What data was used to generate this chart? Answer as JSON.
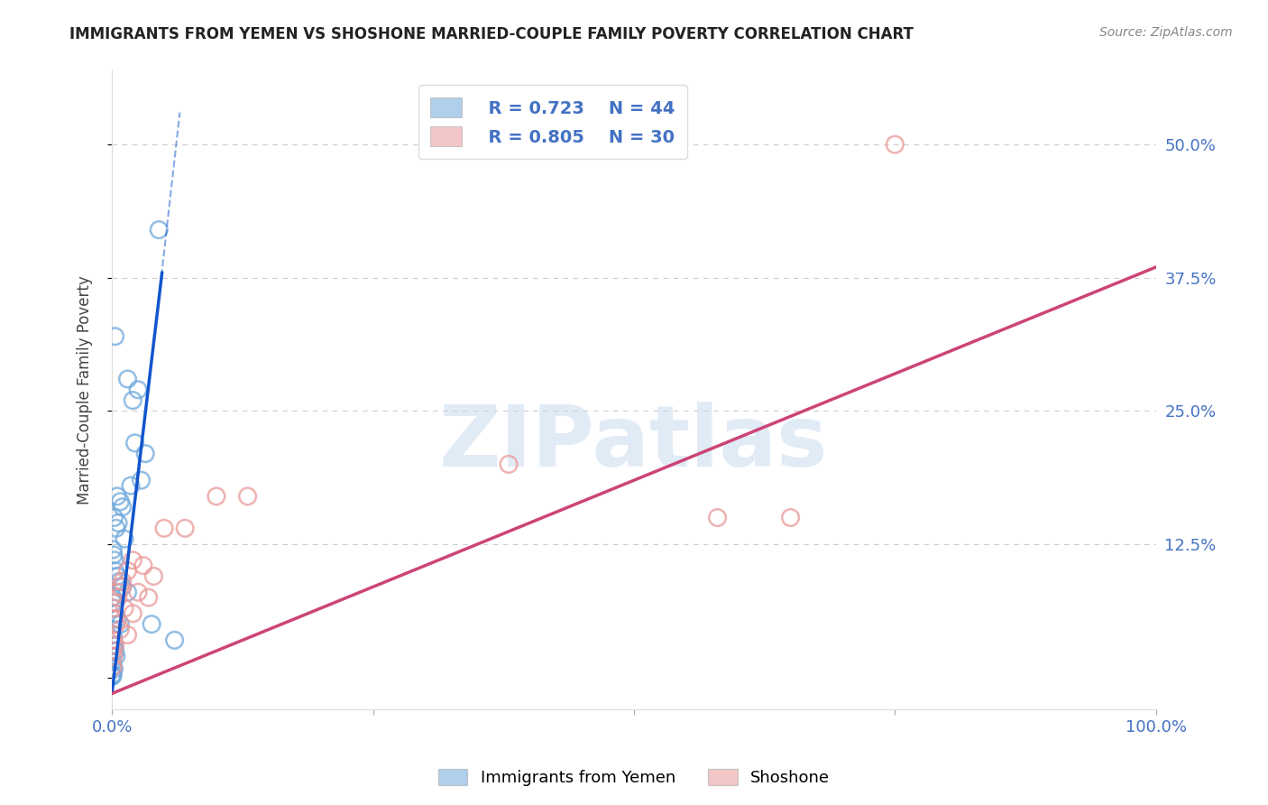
{
  "title": "IMMIGRANTS FROM YEMEN VS SHOSHONE MARRIED-COUPLE FAMILY POVERTY CORRELATION CHART",
  "source": "Source: ZipAtlas.com",
  "ylabel": "Married-Couple Family Poverty",
  "xlim": [
    0,
    100
  ],
  "ylim": [
    -3,
    57
  ],
  "xtick_positions": [
    0,
    25,
    50,
    75,
    100
  ],
  "xticklabels": [
    "0.0%",
    "",
    "",
    "",
    "100.0%"
  ],
  "ytick_positions": [
    0,
    12.5,
    25,
    37.5,
    50
  ],
  "ytick_labels": [
    "",
    "12.5%",
    "25.0%",
    "37.5%",
    "50.0%"
  ],
  "legend1_r": "R = 0.723",
  "legend1_n": "N = 44",
  "legend2_r": "R = 0.805",
  "legend2_n": "N = 30",
  "blue_color": "#6fa8dc",
  "pink_color": "#ea9999",
  "blue_line_color": "#1155cc",
  "pink_line_color": "#cc4477",
  "watermark_text": "ZIPatlas",
  "watermark_color": "#c5d8ee",
  "bg_color": "#ffffff",
  "grid_color": "#cccccc",
  "blue_scatter": [
    [
      0.3,
      32.0
    ],
    [
      1.5,
      28.0
    ],
    [
      2.0,
      26.0
    ],
    [
      2.5,
      27.0
    ],
    [
      2.2,
      22.0
    ],
    [
      3.2,
      21.0
    ],
    [
      1.8,
      18.0
    ],
    [
      2.8,
      18.5
    ],
    [
      0.5,
      17.0
    ],
    [
      0.8,
      16.5
    ],
    [
      1.0,
      16.0
    ],
    [
      0.2,
      15.0
    ],
    [
      0.4,
      14.0
    ],
    [
      0.6,
      14.5
    ],
    [
      1.2,
      13.0
    ],
    [
      0.1,
      12.0
    ],
    [
      0.15,
      11.5
    ],
    [
      0.25,
      11.0
    ],
    [
      0.3,
      10.0
    ],
    [
      0.5,
      9.5
    ],
    [
      0.7,
      9.0
    ],
    [
      1.0,
      8.5
    ],
    [
      1.5,
      8.0
    ],
    [
      0.05,
      7.5
    ],
    [
      0.1,
      7.0
    ],
    [
      0.2,
      6.5
    ],
    [
      0.3,
      6.0
    ],
    [
      0.5,
      5.5
    ],
    [
      0.8,
      5.0
    ],
    [
      0.05,
      4.5
    ],
    [
      0.1,
      4.0
    ],
    [
      0.15,
      3.5
    ],
    [
      0.2,
      3.0
    ],
    [
      0.3,
      2.5
    ],
    [
      0.4,
      2.0
    ],
    [
      0.05,
      1.5
    ],
    [
      0.1,
      1.0
    ],
    [
      0.2,
      0.8
    ],
    [
      0.05,
      0.3
    ],
    [
      0.08,
      0.2
    ],
    [
      0.03,
      0.1
    ],
    [
      4.5,
      42.0
    ],
    [
      3.8,
      5.0
    ],
    [
      6.0,
      3.5
    ]
  ],
  "pink_scatter": [
    [
      75.0,
      50.0
    ],
    [
      38.0,
      20.0
    ],
    [
      10.0,
      17.0
    ],
    [
      13.0,
      17.0
    ],
    [
      58.0,
      15.0
    ],
    [
      65.0,
      15.0
    ],
    [
      5.0,
      14.0
    ],
    [
      7.0,
      14.0
    ],
    [
      2.0,
      11.0
    ],
    [
      3.0,
      10.5
    ],
    [
      1.5,
      10.0
    ],
    [
      4.0,
      9.5
    ],
    [
      1.0,
      9.0
    ],
    [
      0.5,
      8.0
    ],
    [
      0.8,
      8.5
    ],
    [
      2.5,
      8.0
    ],
    [
      3.5,
      7.5
    ],
    [
      0.3,
      7.0
    ],
    [
      0.6,
      7.5
    ],
    [
      1.2,
      6.5
    ],
    [
      2.0,
      6.0
    ],
    [
      0.2,
      5.5
    ],
    [
      0.4,
      5.0
    ],
    [
      0.8,
      4.5
    ],
    [
      1.5,
      4.0
    ],
    [
      0.1,
      3.5
    ],
    [
      0.3,
      3.0
    ],
    [
      0.05,
      2.5
    ],
    [
      0.15,
      2.0
    ],
    [
      0.08,
      1.0
    ]
  ],
  "blue_line_x0": 0.0,
  "blue_line_y0": -1.5,
  "blue_line_x1": 4.8,
  "blue_line_y1": 38.0,
  "blue_dash_x0": 4.2,
  "blue_dash_y0": 33.0,
  "blue_dash_x1": 6.5,
  "blue_dash_y1": 53.0,
  "pink_line_x0": 0.0,
  "pink_line_y0": -1.5,
  "pink_line_x1": 100.0,
  "pink_line_y1": 38.5
}
